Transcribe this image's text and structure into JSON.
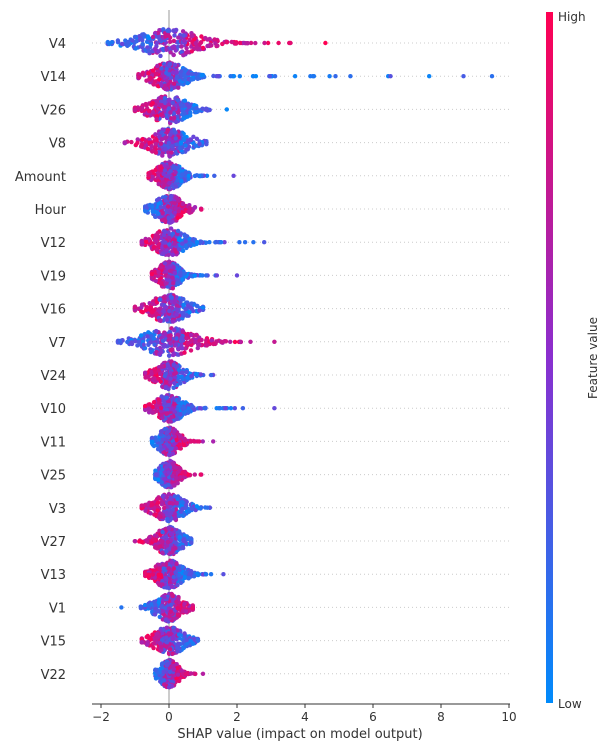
{
  "chart_data": {
    "type": "scatter",
    "subtype": "beeswarm",
    "title": "",
    "xlabel": "SHAP value (impact on model output)",
    "xlim": [
      -2.2,
      10
    ],
    "xticks": [
      -2,
      0,
      2,
      4,
      6,
      8,
      10
    ],
    "colorbar": {
      "label": "Feature value",
      "high_label": "High",
      "low_label": "Low",
      "high_color": "#ff0052",
      "low_color": "#008bfb"
    },
    "features": [
      {
        "name": "V4",
        "min": -1.8,
        "max": 4.6,
        "high_side": "positive"
      },
      {
        "name": "V14",
        "min": -0.9,
        "max": 9.5,
        "high_side": "negative"
      },
      {
        "name": "V26",
        "min": -1.0,
        "max": 1.7,
        "high_side": "negative"
      },
      {
        "name": "V8",
        "min": -1.3,
        "max": 1.1,
        "high_side": "negative"
      },
      {
        "name": "Amount",
        "min": -0.6,
        "max": 1.9,
        "high_side": "negative"
      },
      {
        "name": "Hour",
        "min": -0.7,
        "max": 0.95,
        "high_side": "positive"
      },
      {
        "name": "V12",
        "min": -0.8,
        "max": 2.8,
        "high_side": "negative"
      },
      {
        "name": "V19",
        "min": -0.5,
        "max": 2.0,
        "high_side": "negative"
      },
      {
        "name": "V16",
        "min": -1.0,
        "max": 1.0,
        "high_side": "negative"
      },
      {
        "name": "V7",
        "min": -1.5,
        "max": 3.1,
        "high_side": "positive"
      },
      {
        "name": "V24",
        "min": -0.7,
        "max": 1.3,
        "high_side": "negative"
      },
      {
        "name": "V10",
        "min": -0.7,
        "max": 3.1,
        "high_side": "negative"
      },
      {
        "name": "V11",
        "min": -0.5,
        "max": 1.3,
        "high_side": "positive"
      },
      {
        "name": "V25",
        "min": -0.4,
        "max": 0.95,
        "high_side": "positive"
      },
      {
        "name": "V3",
        "min": -0.8,
        "max": 1.2,
        "high_side": "negative"
      },
      {
        "name": "V27",
        "min": -1.0,
        "max": 0.65,
        "high_side": "negative"
      },
      {
        "name": "V13",
        "min": -0.7,
        "max": 1.6,
        "high_side": "negative"
      },
      {
        "name": "V1",
        "min": -1.4,
        "max": 0.7,
        "high_side": "positive"
      },
      {
        "name": "V15",
        "min": -0.8,
        "max": 0.85,
        "high_side": "negative"
      },
      {
        "name": "V22",
        "min": -0.4,
        "max": 1.0,
        "high_side": "positive"
      }
    ]
  }
}
